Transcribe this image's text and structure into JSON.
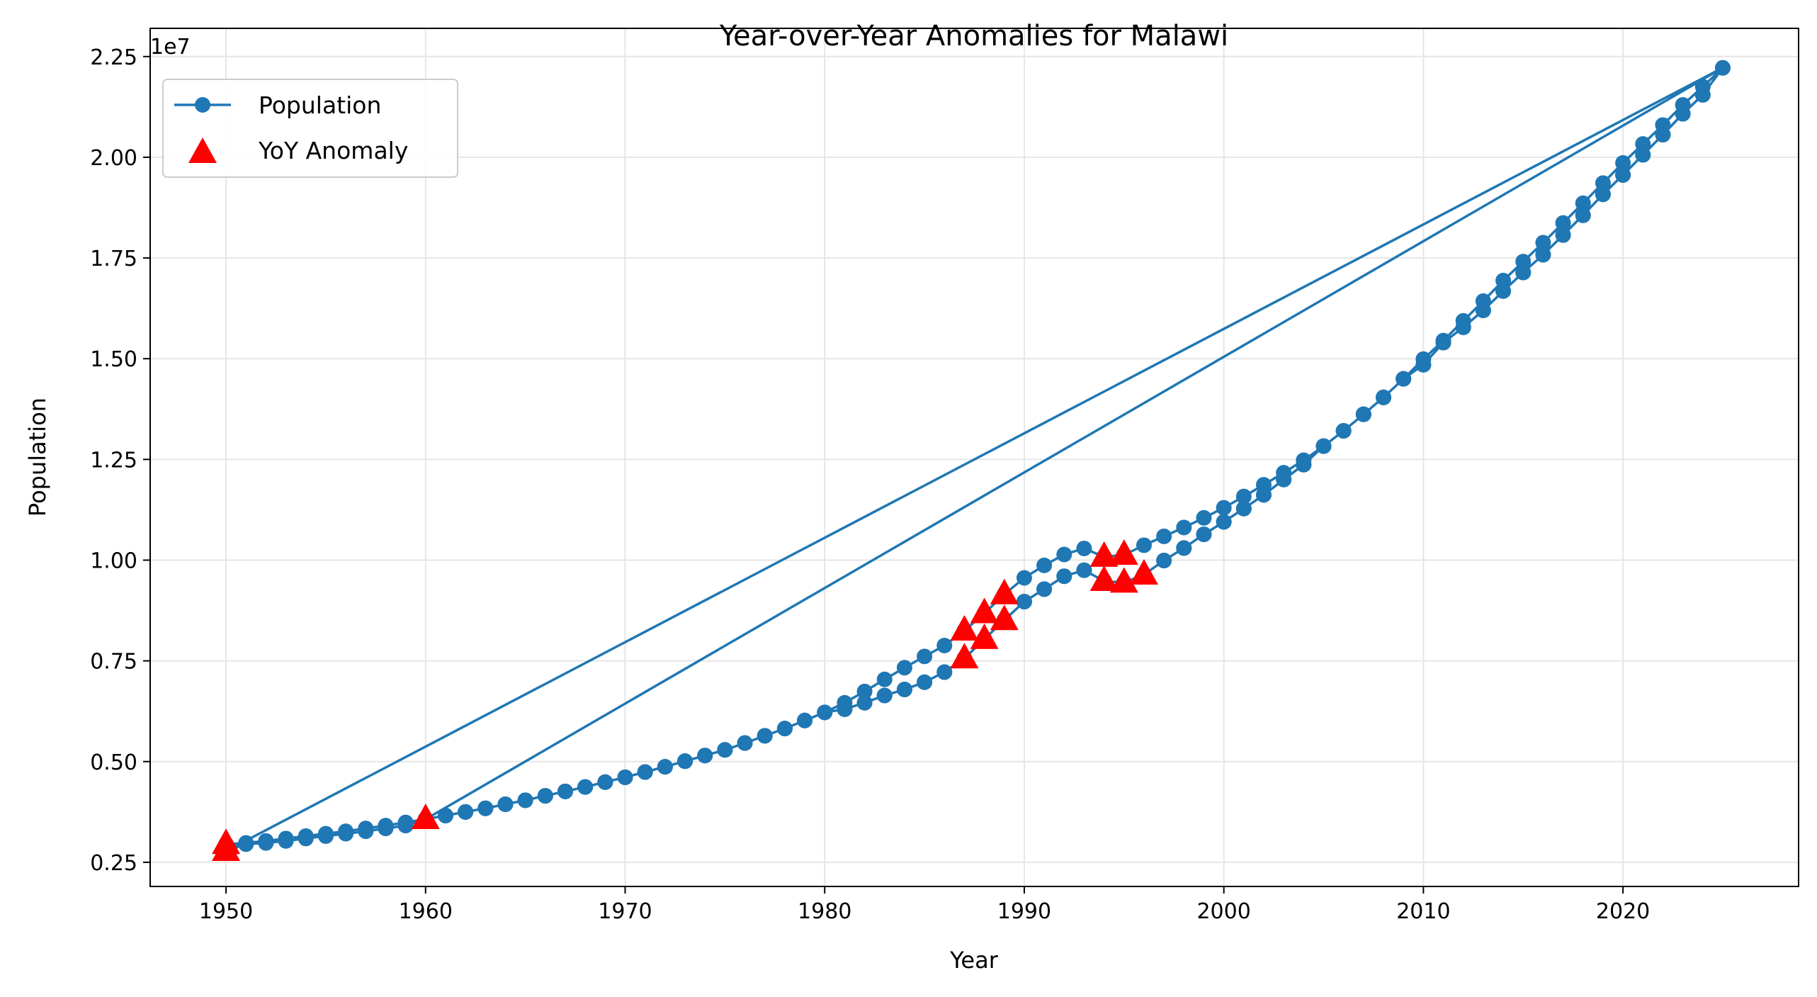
{
  "chart_data": {
    "type": "line",
    "title": "Year-over-Year Anomalies for Malawi",
    "xlabel": "Year",
    "ylabel": "Population",
    "y_offset_label": "1e7",
    "y_scale": 10000000,
    "xlim": [
      1946.2,
      2028.8
    ],
    "ylim": [
      1900000,
      23200000
    ],
    "x_ticks": [
      1950,
      1960,
      1970,
      1980,
      1990,
      2000,
      2010,
      2020
    ],
    "x_tick_labels": [
      "1950",
      "1960",
      "1970",
      "1980",
      "1990",
      "2000",
      "2010",
      "2020"
    ],
    "y_ticks": [
      2500000,
      5000000,
      7500000,
      10000000,
      12500000,
      15000000,
      17500000,
      20000000,
      22500000
    ],
    "y_tick_labels": [
      "0.25",
      "0.50",
      "0.75",
      "1.00",
      "1.25",
      "1.50",
      "1.75",
      "2.00",
      "2.25"
    ],
    "grid": true,
    "legend_position": "top-left",
    "colors": {
      "line": "#1f77b4",
      "anomaly": "#ff0000",
      "grid": "#e6e6e6"
    },
    "series": [
      {
        "name": "Population",
        "style": "line-with-circle-markers",
        "x": [
          1950,
          1951,
          1952,
          1953,
          1954,
          1955,
          1956,
          1957,
          1958,
          1959,
          1960,
          1961,
          1962,
          1963,
          1964,
          1965,
          1966,
          1967,
          1968,
          1969,
          1970,
          1971,
          1972,
          1973,
          1974,
          1975,
          1976,
          1977,
          1978,
          1979,
          1980,
          1981,
          1982,
          1983,
          1984,
          1985,
          1986,
          1987,
          1988,
          1989,
          1990,
          1991,
          1992,
          1993,
          1994,
          1995,
          1996,
          1997,
          1998,
          1999,
          2000,
          2001,
          2002,
          2003,
          2004,
          2005,
          2006,
          2007,
          2008,
          2009,
          2010,
          2011,
          2012,
          2013,
          2014,
          2015,
          2016,
          2017,
          2018,
          2019,
          2020,
          2021,
          2022,
          2023,
          2024,
          2025,
          1950,
          1951,
          1952,
          1953,
          1954,
          1955,
          1956,
          1957,
          1958,
          1959,
          1960,
          1961,
          1962,
          1963,
          1964,
          1965,
          1966,
          1967,
          1968,
          1969,
          1970,
          1971,
          1972,
          1973,
          1974,
          1975,
          1976,
          1977,
          1978,
          1979,
          1980,
          1981,
          1982,
          1983,
          1984,
          1985,
          1986,
          1987,
          1988,
          1989,
          1990,
          1991,
          1992,
          1993,
          1994,
          1995,
          1996,
          1997,
          1998,
          1999,
          2000,
          2001,
          2002,
          2003,
          2004,
          2005,
          2006,
          2007,
          2008,
          2009,
          2010,
          2011,
          2012,
          2013,
          2014,
          2015,
          2016,
          2017,
          2018,
          2019,
          2020,
          2021,
          2022,
          2023,
          2024,
          2025,
          1960,
          1961,
          1962,
          1963,
          1964,
          1965,
          1966,
          1967,
          1968,
          1969,
          1970,
          1971,
          1972,
          1973,
          1974,
          1975,
          1976,
          1977,
          1978,
          1979,
          1980,
          1981,
          1982,
          1983,
          1984,
          1985,
          1986,
          1987,
          1988,
          1989,
          1990,
          1991,
          1992,
          1993,
          1994,
          1995,
          1996,
          1997,
          1998,
          1999,
          2000,
          2001,
          2002,
          2003,
          2004,
          2005,
          2006,
          2007,
          2008,
          2009,
          2010,
          2011,
          2012,
          2013,
          2014,
          2015,
          2016,
          2017,
          2018,
          2019,
          2020,
          2021,
          2022,
          2023,
          2024
        ],
        "y": [
          2950000,
          2980000,
          3030000,
          3090000,
          3150000,
          3210000,
          3270000,
          3340000,
          3410000,
          3490000,
          3570000,
          3660000,
          3750000,
          3840000,
          3940000,
          4040000,
          4150000,
          4260000,
          4370000,
          4490000,
          4610000,
          4740000,
          4870000,
          5010000,
          5150000,
          5290000,
          5460000,
          5640000,
          5820000,
          6020000,
          6220000,
          6460000,
          6740000,
          7040000,
          7330000,
          7610000,
          7880000,
          8250000,
          8680000,
          9150000,
          9560000,
          9870000,
          10140000,
          10290000,
          10080000,
          10130000,
          10370000,
          10590000,
          10810000,
          11050000,
          11300000,
          11580000,
          11870000,
          12170000,
          12480000,
          12830000,
          13210000,
          13620000,
          14040000,
          14500000,
          14990000,
          15450000,
          15940000,
          16430000,
          16940000,
          17410000,
          17880000,
          18370000,
          18860000,
          19360000,
          19860000,
          20330000,
          20800000,
          21300000,
          21750000,
          22220000,
          2780000,
          2950000,
          2980000,
          3030000,
          3090000,
          3150000,
          3210000,
          3270000,
          3340000,
          3410000,
          3570000,
          3660000,
          3750000,
          3840000,
          3940000,
          4040000,
          4150000,
          4260000,
          4370000,
          4490000,
          4610000,
          4740000,
          4870000,
          5010000,
          5150000,
          5290000,
          5460000,
          5640000,
          5820000,
          6020000,
          6220000,
          6300000,
          6460000,
          6640000,
          6790000,
          6970000,
          7220000,
          7560000,
          8040000,
          8510000,
          8970000,
          9280000,
          9600000,
          9750000,
          9480000,
          9440000,
          9640000,
          9990000,
          10300000,
          10640000,
          10950000,
          11280000,
          11620000,
          12000000,
          12370000,
          12830000,
          13210000,
          13620000,
          14040000,
          14500000,
          14850000,
          15400000,
          15780000,
          16200000,
          16680000,
          17140000,
          17580000,
          18070000,
          18560000,
          19080000,
          19560000,
          20060000,
          20560000,
          21080000,
          21550000,
          22220000,
          3570000,
          3660000,
          3750000,
          3840000,
          3940000,
          4040000,
          4150000,
          4260000,
          4370000,
          4490000,
          4610000,
          4740000,
          4870000,
          5010000,
          5150000,
          5290000,
          5460000,
          5640000,
          5820000,
          6020000,
          6220000,
          6300000,
          6460000,
          6640000,
          6790000,
          6970000,
          7220000,
          7560000,
          8040000,
          8510000,
          8970000,
          9280000,
          9600000,
          9750000,
          9480000,
          9440000,
          9640000,
          9990000,
          10300000,
          10640000,
          10950000,
          11280000,
          11620000,
          12000000,
          12370000,
          12830000,
          13210000,
          13620000,
          14040000,
          14500000,
          14850000,
          15400000,
          15780000,
          16200000,
          16680000,
          17140000,
          17580000,
          18070000,
          18560000,
          19080000,
          19560000,
          20060000,
          20560000,
          21080000,
          21550000
        ]
      },
      {
        "name": "YoY Anomaly",
        "style": "triangle-markers",
        "x": [
          1950,
          1950,
          1960,
          1987,
          1987,
          1988,
          1988,
          1989,
          1989,
          1994,
          1994,
          1995,
          1995,
          1996
        ],
        "y": [
          2780000,
          2950000,
          3570000,
          7560000,
          8250000,
          8040000,
          8680000,
          8510000,
          9150000,
          10080000,
          9480000,
          10130000,
          9440000,
          9640000
        ]
      }
    ]
  }
}
